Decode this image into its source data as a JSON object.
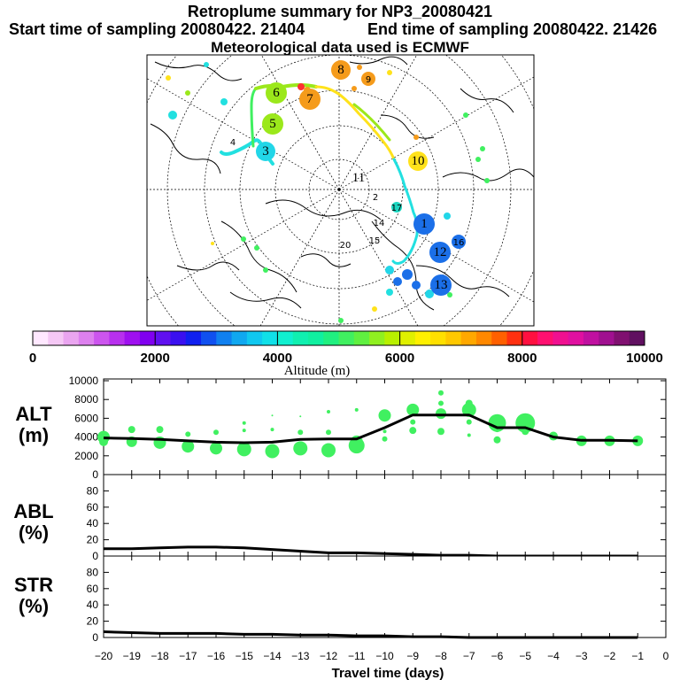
{
  "header": {
    "title": "Retroplume summary for NP3_20080421",
    "start_label": "Start time of sampling 20080422. 21404",
    "end_label": "End time of sampling 20080422. 21426",
    "met_label": "Meteorological data used is ECMWF"
  },
  "colorbar": {
    "ticks": [
      "0",
      "2000",
      "4000",
      "6000",
      "8000",
      "10000"
    ],
    "label": "Altitude (m)",
    "colors": [
      "#ffe8ff",
      "#f5c8f5",
      "#eaa5f0",
      "#dd80ee",
      "#cc55ee",
      "#b830ee",
      "#9f10f0",
      "#8000f0",
      "#6010f0",
      "#3a10f0",
      "#1020f0",
      "#1050f0",
      "#1080f0",
      "#10a8f0",
      "#10c8f0",
      "#10e0e8",
      "#10f0d0",
      "#10f0b0",
      "#10f0a0",
      "#20f080",
      "#40f060",
      "#60f040",
      "#90f020",
      "#b8f000",
      "#e0f000",
      "#fff000",
      "#ffe000",
      "#ffc800",
      "#ffa800",
      "#ff8800",
      "#ff6000",
      "#ff3010",
      "#ff1040",
      "#ff1070",
      "#f01090",
      "#e010a0",
      "#c010a0",
      "#a01090",
      "#801070",
      "#601060"
    ],
    "altitude_min": 0,
    "altitude_max": 10000
  },
  "map": {
    "day_labels": [
      {
        "label": "1",
        "size": "big",
        "color": "#1b6fe8"
      },
      {
        "label": "2",
        "size": "small",
        "color": "#ffffff"
      },
      {
        "label": "3",
        "size": "big",
        "color": "#22d6e8"
      },
      {
        "label": "4",
        "size": "small",
        "color": "#ffffff"
      },
      {
        "label": "5",
        "size": "big",
        "color": "#9be81b"
      },
      {
        "label": "6",
        "size": "big",
        "color": "#9be81b"
      },
      {
        "label": "7",
        "size": "big",
        "color": "#f59b1b"
      },
      {
        "label": "8",
        "size": "big",
        "color": "#f59b1b"
      },
      {
        "label": "9",
        "size": "small",
        "color": "#f59b1b"
      },
      {
        "label": "10",
        "size": "big",
        "color": "#ffe21b"
      },
      {
        "label": "11",
        "size": "big",
        "color": "#1b6fe8"
      },
      {
        "label": "12",
        "size": "big",
        "color": "#1b6fe8"
      },
      {
        "label": "13",
        "size": "big",
        "color": "#1b6fe8"
      },
      {
        "label": "14",
        "size": "small",
        "color": "#ffffff"
      },
      {
        "label": "15",
        "size": "small",
        "color": "#ffffff"
      },
      {
        "label": "16",
        "size": "small",
        "color": "#1b6fe8"
      },
      {
        "label": "17",
        "size": "small",
        "color": "#1bd6c0"
      },
      {
        "label": "20",
        "size": "small",
        "color": "#ffffff"
      }
    ]
  },
  "chart_data": [
    {
      "type": "line",
      "panel": "ALT",
      "ylabel": "ALT\n(m)",
      "ylabel_line1": "ALT",
      "ylabel_line2": "(m)",
      "ylim": [
        0,
        10000
      ],
      "yticks": [
        "10000",
        "8000",
        "6000",
        "4000",
        "2000",
        "0"
      ],
      "x": [
        -20,
        -19,
        -18,
        -17,
        -16,
        -15,
        -14,
        -13,
        -12,
        -11,
        -10,
        -9,
        -8,
        -7,
        -6,
        -5,
        -4,
        -3,
        -2,
        -1
      ],
      "series": [
        {
          "name": "median altitude",
          "values": [
            3900,
            3850,
            3750,
            3600,
            3450,
            3400,
            3450,
            3750,
            3800,
            3800,
            5000,
            6350,
            6350,
            6350,
            5000,
            5000,
            4000,
            3650,
            3650,
            3600
          ]
        }
      ],
      "clusters": [
        {
          "day": -20,
          "points": [
            [
              4000,
              7
            ],
            [
              3500,
              5
            ]
          ]
        },
        {
          "day": -19,
          "points": [
            [
              3500,
              6
            ],
            [
              4800,
              4
            ]
          ]
        },
        {
          "day": -18,
          "points": [
            [
              3400,
              7
            ],
            [
              4800,
              4
            ]
          ]
        },
        {
          "day": -17,
          "points": [
            [
              3000,
              7
            ],
            [
              4300,
              3
            ]
          ]
        },
        {
          "day": -16,
          "points": [
            [
              2800,
              7
            ],
            [
              4500,
              3
            ]
          ]
        },
        {
          "day": -15,
          "points": [
            [
              2700,
              8
            ],
            [
              4700,
              2
            ],
            [
              5500,
              2
            ]
          ]
        },
        {
          "day": -14,
          "points": [
            [
              2500,
              8
            ],
            [
              4800,
              2
            ],
            [
              6300,
              1
            ]
          ]
        },
        {
          "day": -13,
          "points": [
            [
              2800,
              8
            ],
            [
              4500,
              3
            ],
            [
              6200,
              1
            ]
          ]
        },
        {
          "day": -12,
          "points": [
            [
              2600,
              8
            ],
            [
              4500,
              3
            ],
            [
              6700,
              2
            ]
          ]
        },
        {
          "day": -11,
          "points": [
            [
              3100,
              9
            ],
            [
              3500,
              7
            ],
            [
              6900,
              2
            ]
          ]
        },
        {
          "day": -10,
          "points": [
            [
              6300,
              7
            ],
            [
              3800,
              3
            ],
            [
              4600,
              2
            ]
          ]
        },
        {
          "day": -9,
          "points": [
            [
              6900,
              7
            ],
            [
              4700,
              4
            ],
            [
              5600,
              3
            ]
          ]
        },
        {
          "day": -8,
          "points": [
            [
              6500,
              6
            ],
            [
              4600,
              4
            ],
            [
              8700,
              3
            ],
            [
              7600,
              3
            ]
          ]
        },
        {
          "day": -7,
          "points": [
            [
              6900,
              8
            ],
            [
              7600,
              4
            ],
            [
              5600,
              3
            ],
            [
              4200,
              2
            ]
          ]
        },
        {
          "day": -6,
          "points": [
            [
              5500,
              10
            ],
            [
              3700,
              4
            ],
            [
              4800,
              3
            ]
          ]
        },
        {
          "day": -5,
          "points": [
            [
              5500,
              11
            ],
            [
              4600,
              4
            ]
          ]
        },
        {
          "day": -4,
          "points": [
            [
              4100,
              5
            ]
          ]
        },
        {
          "day": -3,
          "points": [
            [
              3600,
              6
            ]
          ]
        },
        {
          "day": -2,
          "points": [
            [
              3600,
              6
            ]
          ]
        },
        {
          "day": -1,
          "points": [
            [
              3600,
              6
            ]
          ]
        }
      ]
    },
    {
      "type": "line",
      "panel": "ABL",
      "ylabel_line1": "ABL",
      "ylabel_line2": "(%)",
      "ylim": [
        0,
        100
      ],
      "yticks": [
        "80",
        "60",
        "40",
        "20",
        "0"
      ],
      "x": [
        -20,
        -19,
        -18,
        -17,
        -16,
        -15,
        -14,
        -13,
        -12,
        -11,
        -10,
        -9,
        -8,
        -7,
        -6,
        -5,
        -4,
        -3,
        -2,
        -1
      ],
      "series": [
        {
          "name": "ABL fraction",
          "values": [
            9,
            9,
            10,
            11,
            11,
            10,
            8,
            6,
            4,
            4,
            3,
            2,
            1,
            1,
            0,
            0,
            0,
            0,
            0,
            0
          ]
        }
      ]
    },
    {
      "type": "line",
      "panel": "STR",
      "ylabel_line1": "STR",
      "ylabel_line2": "(%)",
      "ylim": [
        0,
        100
      ],
      "yticks": [
        "80",
        "60",
        "40",
        "20",
        "0"
      ],
      "x": [
        -20,
        -19,
        -18,
        -17,
        -16,
        -15,
        -14,
        -13,
        -12,
        -11,
        -10,
        -9,
        -8,
        -7,
        -6,
        -5,
        -4,
        -3,
        -2,
        -1
      ],
      "series": [
        {
          "name": "STR fraction",
          "values": [
            7,
            6,
            5,
            5,
            5,
            4,
            4,
            3,
            3,
            2,
            2,
            1,
            1,
            0,
            0,
            0,
            0,
            0,
            0,
            0
          ]
        }
      ]
    }
  ],
  "x_axis": {
    "tick_labels": [
      "−20",
      "−19",
      "−18",
      "−17",
      "−16",
      "−15",
      "−14",
      "−13",
      "−12",
      "−11",
      "−10",
      "−9",
      "−8",
      "−7",
      "−6",
      "−5",
      "−4",
      "−3",
      "−2",
      "−1",
      "0"
    ],
    "label": "Travel time (days)"
  }
}
